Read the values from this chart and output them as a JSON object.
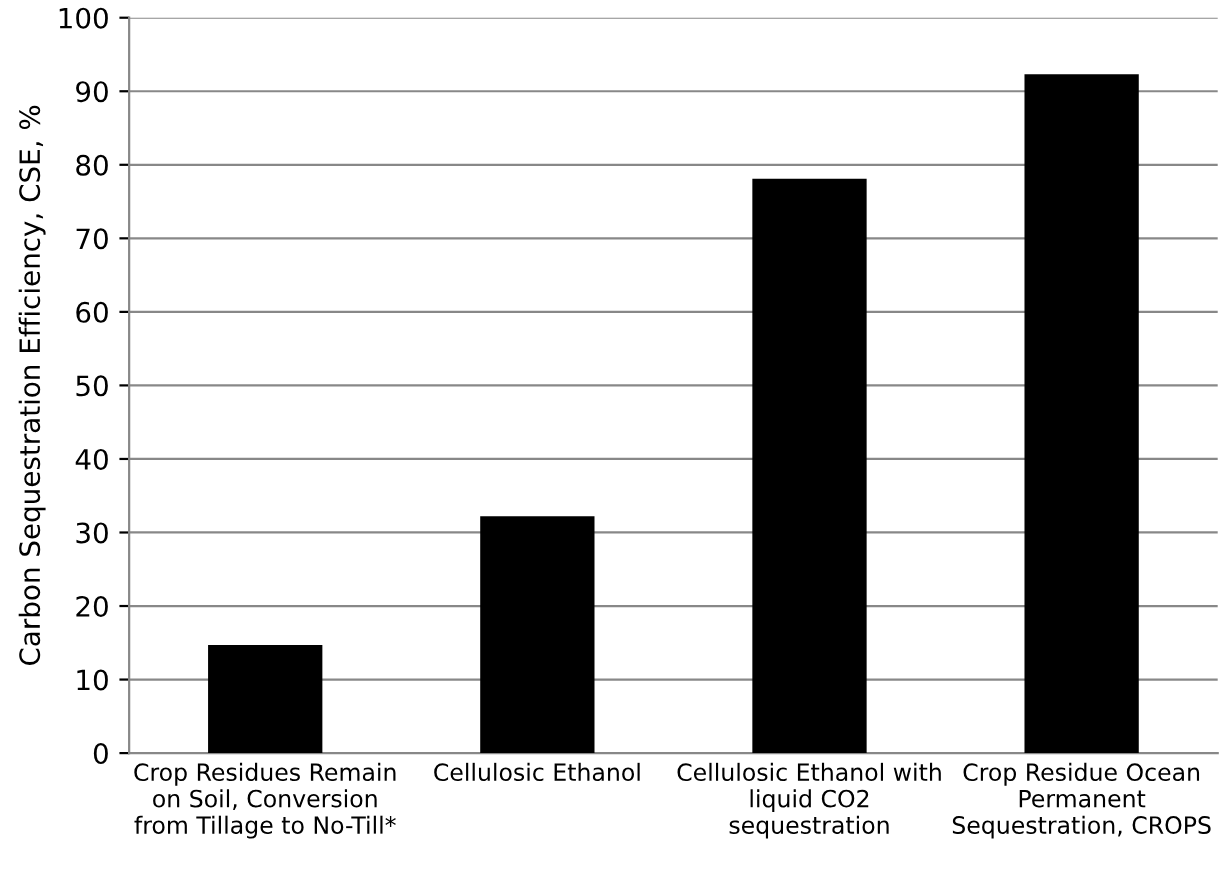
{
  "chart_data": {
    "type": "bar",
    "ylabel": "Carbon Sequestration Efficiency, CSE, %",
    "categories": [
      "Crop Residues Remain\non Soil, Conversion\nfrom Tillage to No-Till*",
      "Cellulosic Ethanol",
      "Cellulosic Ethanol with\nliquid CO2\nsequestration",
      "Crop Residue Ocean\nPermanent\nSequestration, CROPS"
    ],
    "values": [
      14.7,
      32.2,
      78.1,
      92.3
    ],
    "color": "#000000",
    "ylim": [
      0,
      100
    ],
    "yticks": [
      0,
      10,
      20,
      30,
      40,
      50,
      60,
      70,
      80,
      90,
      100
    ],
    "grid": "y"
  }
}
